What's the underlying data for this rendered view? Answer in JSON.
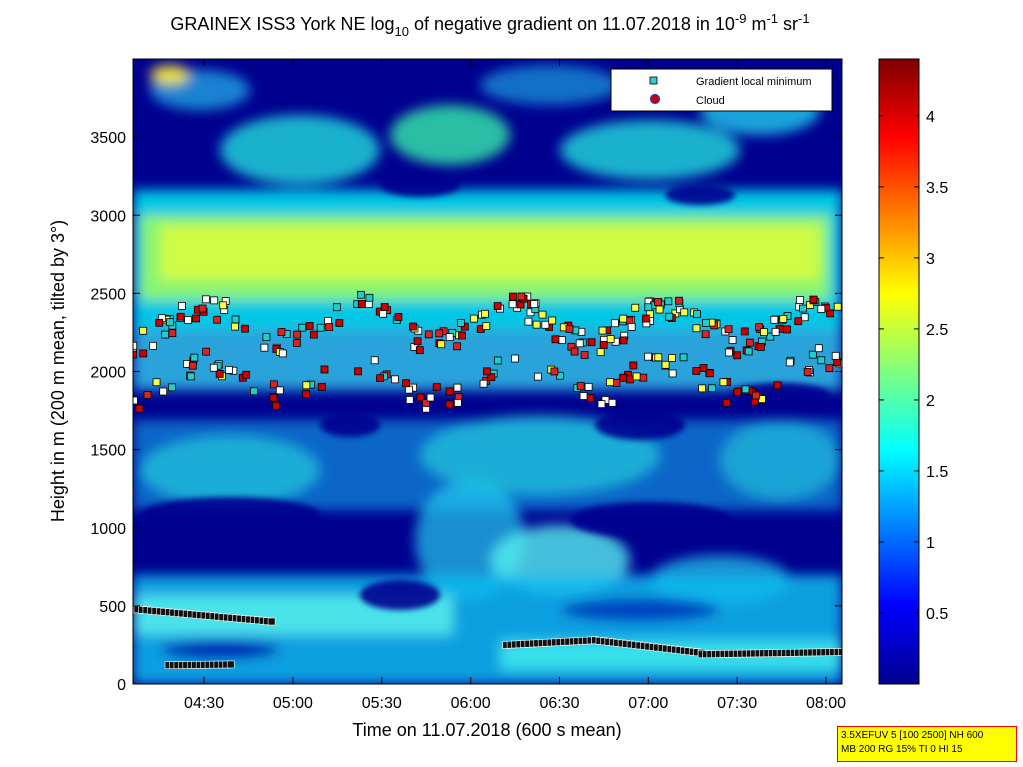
{
  "chart_data": {
    "type": "heatmap",
    "title": {
      "prefix": "GRAINEX ISS3 York NE log",
      "log_base": "10",
      "middle": " of negative gradient on 11.07.2018 in 10",
      "exp1": "-9",
      "unit_m": " m",
      "exp2": "-1",
      "unit_sr": " sr",
      "exp3": "-1"
    },
    "xlabel": "Time on 11.07.2018 (600 s mean)",
    "ylabel": "Height in m (200 m mean, tilted by 3°)",
    "x_ticks": [
      "04:30",
      "05:00",
      "05:30",
      "06:00",
      "06:30",
      "07:00",
      "07:30",
      "08:00"
    ],
    "x_tick_hours": [
      4.5,
      5.0,
      5.5,
      6.0,
      6.5,
      7.0,
      7.5,
      8.0
    ],
    "xlim_hours": [
      4.1,
      8.09
    ],
    "y_ticks": [
      "0",
      "500",
      "1000",
      "1500",
      "2000",
      "2500",
      "3000",
      "3500"
    ],
    "y_tick_values": [
      0,
      500,
      1000,
      1500,
      2000,
      2500,
      3000,
      3500
    ],
    "ylim": [
      0,
      4000
    ],
    "colorbar": {
      "ticks": [
        "0.5",
        "1",
        "1.5",
        "2",
        "2.5",
        "3",
        "3.5",
        "4"
      ],
      "tick_values": [
        0.5,
        1,
        1.5,
        2,
        2.5,
        3,
        3.5,
        4
      ],
      "range": [
        0,
        4.4
      ],
      "colormap": "jet"
    },
    "legend": {
      "placement": "top-right",
      "entries": [
        {
          "label": "Gradient local minimum",
          "marker": "square",
          "color": "#33cccc"
        },
        {
          "label": "Cloud",
          "marker": "circle",
          "color": "#cc0000",
          "edge": "#3333cc"
        }
      ]
    },
    "layers": [
      {
        "name": "",
        "height_m": 480,
        "height_end_m": 400,
        "start_h": 4.1,
        "end_h": 4.88,
        "color": "#000000",
        "type": "band"
      },
      {
        "name": "",
        "height_m": 120,
        "height_end_m": 125,
        "start_h": 4.3,
        "end_h": 4.65,
        "color": "#000000",
        "type": "band"
      },
      {
        "name": "",
        "height_m": 250,
        "height_end_m": 280,
        "start_h": 6.2,
        "end_h": 6.7,
        "color": "#000000",
        "type": "band"
      },
      {
        "name": "",
        "height_m": 280,
        "height_end_m": 200,
        "start_h": 6.7,
        "end_h": 7.3,
        "color": "#000000",
        "type": "band"
      },
      {
        "name": "",
        "height_m": 190,
        "height_end_m": 205,
        "start_h": 7.3,
        "end_h": 8.09,
        "color": "#000000",
        "type": "band"
      }
    ],
    "grid": false
  },
  "info_box": {
    "line1": "3.5XEFUV 5 [100 2500] NH 600",
    "line2": "MB 200 RG 15% TI 0 HI 15"
  }
}
